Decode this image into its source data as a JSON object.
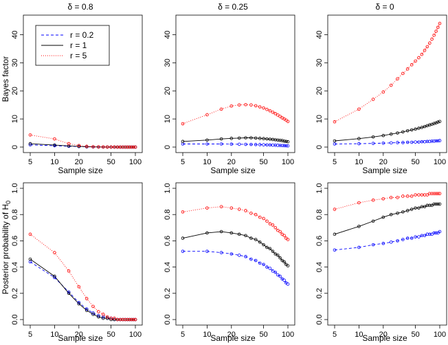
{
  "figure": {
    "xlabel": "Sample size",
    "row_ylabels": [
      "Bayes factor",
      "Posterior probability of H"
    ],
    "ylabel_subscript": "0",
    "column_titles": [
      "δ = 0.8",
      "δ = 0.25",
      "δ = 0"
    ]
  },
  "legend": {
    "entries": [
      {
        "label": "r = 0.2",
        "color": "#0000ff",
        "dash": "dashed"
      },
      {
        "label": "r = 1",
        "color": "#000000",
        "dash": "solid"
      },
      {
        "label": "r = 5",
        "color": "#ff0000",
        "dash": "dotted"
      }
    ]
  },
  "chart_data": [
    {
      "type": "line",
      "row": 0,
      "col": 0,
      "title": "δ = 0.8",
      "xlabel": "Sample size",
      "ylabel": "Bayes factor",
      "x_scale": "log",
      "xlim": [
        5,
        100
      ],
      "ylim": [
        0,
        45
      ],
      "xticks": [
        5,
        10,
        20,
        50,
        100
      ],
      "yticks": [
        0,
        10,
        20,
        30,
        40
      ],
      "x": [
        5,
        10,
        15,
        20,
        25,
        30,
        35,
        40,
        45,
        50,
        55,
        60,
        65,
        70,
        75,
        80,
        85,
        90,
        95,
        100
      ],
      "marker_x": [
        5,
        10,
        15,
        20,
        25,
        30,
        35,
        40,
        45,
        50,
        55,
        60,
        65,
        70,
        75,
        80,
        85,
        90,
        95,
        100
      ],
      "series": [
        {
          "name": "r = 0.2",
          "color": "#0000ff",
          "dash": "dashed",
          "values": [
            0.8,
            0.48,
            0.28,
            0.17,
            0.1,
            0.06,
            0.04,
            0.03,
            0.02,
            0.01,
            0.01,
            0.0,
            0.0,
            0.0,
            0.0,
            0.0,
            0.0,
            0.0,
            0.0,
            0.0
          ]
        },
        {
          "name": "r = 1",
          "color": "#000000",
          "dash": "solid",
          "values": [
            1.2,
            0.72,
            0.4,
            0.23,
            0.14,
            0.09,
            0.05,
            0.03,
            0.02,
            0.01,
            0.01,
            0.0,
            0.0,
            0.0,
            0.0,
            0.0,
            0.0,
            0.0,
            0.0,
            0.0
          ]
        },
        {
          "name": "r = 5",
          "color": "#ff0000",
          "dash": "dotted",
          "values": [
            4.3,
            2.9,
            1.2,
            0.55,
            0.25,
            0.12,
            0.07,
            0.04,
            0.02,
            0.01,
            0.01,
            0.0,
            0.0,
            0.0,
            0.0,
            0.0,
            0.0,
            0.0,
            0.0,
            0.0
          ]
        }
      ]
    },
    {
      "type": "line",
      "row": 0,
      "col": 1,
      "title": "δ = 0.25",
      "xlabel": "Sample size",
      "ylabel": "",
      "x_scale": "log",
      "xlim": [
        5,
        100
      ],
      "ylim": [
        0,
        45
      ],
      "xticks": [
        5,
        10,
        20,
        50,
        100
      ],
      "yticks": [
        0,
        10,
        20,
        30,
        40
      ],
      "x": [
        5,
        10,
        15,
        20,
        25,
        30,
        35,
        40,
        45,
        50,
        55,
        60,
        65,
        70,
        75,
        80,
        85,
        90,
        95,
        100
      ],
      "marker_x": [
        5,
        10,
        15,
        20,
        25,
        30,
        35,
        40,
        45,
        50,
        55,
        60,
        65,
        70,
        75,
        80,
        85,
        90,
        95,
        100
      ],
      "series": [
        {
          "name": "r = 0.2",
          "color": "#0000ff",
          "dash": "dashed",
          "values": [
            1.1,
            1.1,
            1.1,
            1.05,
            1.0,
            0.97,
            0.94,
            0.9,
            0.86,
            0.82,
            0.78,
            0.74,
            0.7,
            0.66,
            0.62,
            0.58,
            0.54,
            0.5,
            0.46,
            0.43
          ]
        },
        {
          "name": "r = 1",
          "color": "#000000",
          "dash": "solid",
          "values": [
            2.0,
            2.5,
            2.9,
            3.1,
            3.2,
            3.3,
            3.3,
            3.2,
            3.1,
            3.0,
            2.9,
            2.8,
            2.7,
            2.6,
            2.5,
            2.4,
            2.3,
            2.1,
            2.0,
            1.9
          ]
        },
        {
          "name": "r = 5",
          "color": "#ff0000",
          "dash": "dotted",
          "values": [
            8.3,
            11.5,
            13.5,
            14.6,
            15.0,
            15.1,
            15.0,
            14.7,
            14.3,
            13.9,
            13.4,
            12.9,
            12.4,
            11.9,
            11.4,
            10.9,
            10.4,
            10.0,
            9.6,
            9.1
          ]
        }
      ]
    },
    {
      "type": "line",
      "row": 0,
      "col": 2,
      "title": "δ = 0",
      "xlabel": "Sample size",
      "ylabel": "",
      "x_scale": "log",
      "xlim": [
        5,
        100
      ],
      "ylim": [
        0,
        45
      ],
      "xticks": [
        5,
        10,
        20,
        50,
        100
      ],
      "yticks": [
        0,
        10,
        20,
        30,
        40
      ],
      "x": [
        5,
        10,
        15,
        20,
        25,
        30,
        35,
        40,
        45,
        50,
        55,
        60,
        65,
        70,
        75,
        80,
        85,
        90,
        95,
        100
      ],
      "marker_x": [
        5,
        10,
        15,
        20,
        25,
        30,
        35,
        40,
        45,
        50,
        55,
        60,
        65,
        70,
        75,
        80,
        85,
        90,
        95,
        100
      ],
      "series": [
        {
          "name": "r = 0.2",
          "color": "#0000ff",
          "dash": "dashed",
          "values": [
            1.1,
            1.2,
            1.3,
            1.4,
            1.5,
            1.6,
            1.6,
            1.7,
            1.7,
            1.8,
            1.8,
            1.9,
            1.9,
            2.0,
            2.0,
            2.1,
            2.1,
            2.2,
            2.2,
            2.3
          ]
        },
        {
          "name": "r = 1",
          "color": "#000000",
          "dash": "solid",
          "values": [
            2.2,
            3.0,
            3.6,
            4.1,
            4.6,
            5.0,
            5.4,
            5.8,
            6.1,
            6.4,
            6.7,
            7.0,
            7.3,
            7.6,
            7.9,
            8.1,
            8.4,
            8.6,
            8.9,
            9.1
          ]
        },
        {
          "name": "r = 5",
          "color": "#ff0000",
          "dash": "dotted",
          "values": [
            9.0,
            13.5,
            17.0,
            19.6,
            22.0,
            24.3,
            26.2,
            27.8,
            29.3,
            30.6,
            31.8,
            33.0,
            34.4,
            35.7,
            37.0,
            38.4,
            39.8,
            41.2,
            42.6,
            44.0
          ]
        }
      ]
    },
    {
      "type": "line",
      "row": 1,
      "col": 0,
      "title": "",
      "xlabel": "Sample size",
      "ylabel": "Posterior probability of H0",
      "x_scale": "log",
      "xlim": [
        5,
        100
      ],
      "ylim": [
        0,
        1
      ],
      "xticks": [
        5,
        10,
        20,
        50,
        100
      ],
      "yticks": [
        0.0,
        0.2,
        0.4,
        0.6,
        0.8,
        1.0
      ],
      "x": [
        5,
        10,
        15,
        20,
        25,
        30,
        35,
        40,
        45,
        50,
        55,
        60,
        65,
        70,
        75,
        80,
        85,
        90,
        95,
        100
      ],
      "marker_x": [
        5,
        10,
        15,
        20,
        25,
        30,
        35,
        40,
        45,
        50,
        55,
        60,
        65,
        70,
        75,
        80,
        85,
        90,
        95,
        100
      ],
      "series": [
        {
          "name": "r = 0.2",
          "color": "#0000ff",
          "dash": "dashed",
          "values": [
            0.44,
            0.32,
            0.21,
            0.13,
            0.08,
            0.05,
            0.03,
            0.02,
            0.01,
            0.01,
            0.0,
            0.0,
            0.0,
            0.0,
            0.0,
            0.0,
            0.0,
            0.0,
            0.0,
            0.0
          ]
        },
        {
          "name": "r = 1",
          "color": "#000000",
          "dash": "solid",
          "values": [
            0.46,
            0.33,
            0.2,
            0.12,
            0.07,
            0.04,
            0.02,
            0.01,
            0.01,
            0.0,
            0.0,
            0.0,
            0.0,
            0.0,
            0.0,
            0.0,
            0.0,
            0.0,
            0.0,
            0.0
          ]
        },
        {
          "name": "r = 5",
          "color": "#ff0000",
          "dash": "dotted",
          "values": [
            0.65,
            0.51,
            0.37,
            0.25,
            0.16,
            0.1,
            0.06,
            0.04,
            0.02,
            0.01,
            0.01,
            0.0,
            0.0,
            0.0,
            0.0,
            0.0,
            0.0,
            0.0,
            0.0,
            0.0
          ]
        }
      ]
    },
    {
      "type": "line",
      "row": 1,
      "col": 1,
      "title": "",
      "xlabel": "Sample size",
      "ylabel": "",
      "x_scale": "log",
      "xlim": [
        5,
        100
      ],
      "ylim": [
        0,
        1
      ],
      "xticks": [
        5,
        10,
        20,
        50,
        100
      ],
      "yticks": [
        0.0,
        0.2,
        0.4,
        0.6,
        0.8,
        1.0
      ],
      "x": [
        5,
        10,
        15,
        20,
        25,
        30,
        35,
        40,
        45,
        50,
        55,
        60,
        65,
        70,
        75,
        80,
        85,
        90,
        95,
        100
      ],
      "marker_x": [
        5,
        10,
        15,
        20,
        25,
        30,
        35,
        40,
        45,
        50,
        55,
        60,
        65,
        70,
        75,
        80,
        85,
        90,
        95,
        100
      ],
      "series": [
        {
          "name": "r = 0.2",
          "color": "#0000ff",
          "dash": "dashed",
          "values": [
            0.52,
            0.52,
            0.51,
            0.5,
            0.49,
            0.48,
            0.46,
            0.45,
            0.43,
            0.42,
            0.4,
            0.39,
            0.37,
            0.36,
            0.34,
            0.33,
            0.31,
            0.3,
            0.28,
            0.27
          ]
        },
        {
          "name": "r = 1",
          "color": "#000000",
          "dash": "solid",
          "values": [
            0.62,
            0.66,
            0.67,
            0.66,
            0.65,
            0.64,
            0.62,
            0.61,
            0.59,
            0.57,
            0.55,
            0.54,
            0.52,
            0.5,
            0.49,
            0.47,
            0.45,
            0.44,
            0.42,
            0.41
          ]
        },
        {
          "name": "r = 5",
          "color": "#ff0000",
          "dash": "dotted",
          "values": [
            0.82,
            0.85,
            0.86,
            0.85,
            0.84,
            0.83,
            0.81,
            0.8,
            0.78,
            0.77,
            0.75,
            0.73,
            0.72,
            0.7,
            0.68,
            0.67,
            0.65,
            0.64,
            0.62,
            0.61
          ]
        }
      ]
    },
    {
      "type": "line",
      "row": 1,
      "col": 2,
      "title": "",
      "xlabel": "Sample size",
      "ylabel": "",
      "x_scale": "log",
      "xlim": [
        5,
        100
      ],
      "ylim": [
        0,
        1
      ],
      "xticks": [
        5,
        10,
        20,
        50,
        100
      ],
      "yticks": [
        0.0,
        0.2,
        0.4,
        0.6,
        0.8,
        1.0
      ],
      "x": [
        5,
        10,
        15,
        20,
        25,
        30,
        35,
        40,
        45,
        50,
        55,
        60,
        65,
        70,
        75,
        80,
        85,
        90,
        95,
        100
      ],
      "marker_x": [
        5,
        10,
        15,
        20,
        25,
        30,
        35,
        40,
        45,
        50,
        55,
        60,
        65,
        70,
        75,
        80,
        85,
        90,
        95,
        100
      ],
      "series": [
        {
          "name": "r = 0.2",
          "color": "#0000ff",
          "dash": "dashed",
          "values": [
            0.53,
            0.55,
            0.57,
            0.58,
            0.59,
            0.6,
            0.61,
            0.62,
            0.62,
            0.63,
            0.63,
            0.64,
            0.64,
            0.65,
            0.65,
            0.65,
            0.66,
            0.66,
            0.66,
            0.67
          ]
        },
        {
          "name": "r = 1",
          "color": "#000000",
          "dash": "solid",
          "values": [
            0.65,
            0.71,
            0.75,
            0.78,
            0.8,
            0.81,
            0.82,
            0.83,
            0.84,
            0.85,
            0.85,
            0.86,
            0.86,
            0.87,
            0.87,
            0.87,
            0.88,
            0.88,
            0.88,
            0.88
          ]
        },
        {
          "name": "r = 5",
          "color": "#ff0000",
          "dash": "dotted",
          "values": [
            0.84,
            0.89,
            0.91,
            0.92,
            0.93,
            0.93,
            0.94,
            0.94,
            0.94,
            0.95,
            0.95,
            0.95,
            0.95,
            0.95,
            0.96,
            0.96,
            0.96,
            0.96,
            0.96,
            0.96
          ]
        }
      ]
    }
  ]
}
